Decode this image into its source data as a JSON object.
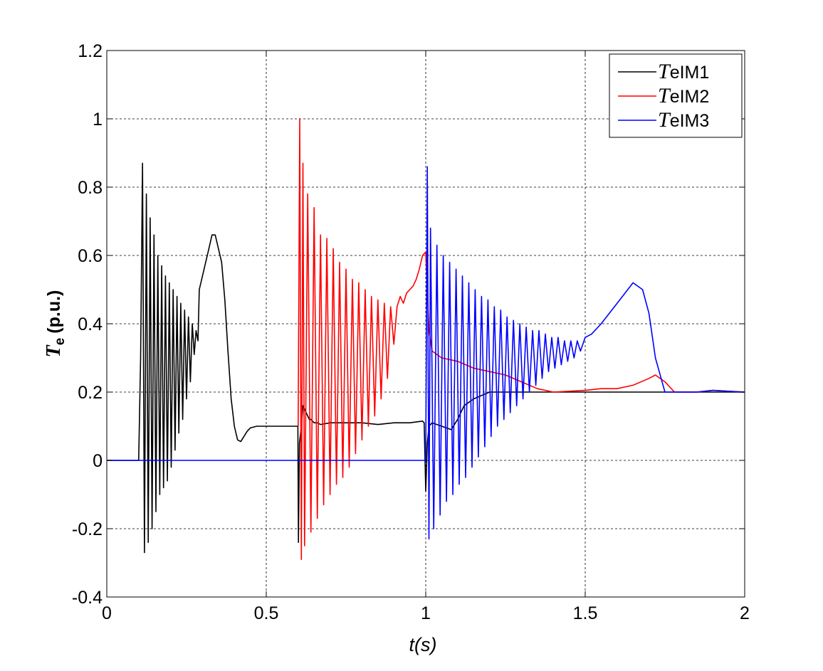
{
  "chart_data": {
    "type": "line",
    "title": "",
    "xlabel": "t(s)",
    "ylabel": {
      "symbol": "T",
      "subscript": "e",
      "unit": "(p.u.)"
    },
    "xlim": [
      0,
      2
    ],
    "ylim": [
      -0.4,
      1.2
    ],
    "xticks": [
      0,
      0.5,
      1,
      1.5,
      2
    ],
    "xtick_labels": [
      "0",
      "0.5",
      "1",
      "1.5",
      "2"
    ],
    "yticks": [
      -0.4,
      -0.2,
      0,
      0.2,
      0.4,
      0.6,
      0.8,
      1,
      1.2
    ],
    "ytick_labels": [
      "-0.4",
      "-0.2",
      "0",
      "0.2",
      "0.4",
      "0.6",
      "0.8",
      "1",
      "1.2"
    ],
    "grid": true,
    "legend_position": "top-right",
    "series": [
      {
        "name": "TeIM1",
        "legend_symbol": "T",
        "legend_rest": "eIM1",
        "color": "#000000",
        "x": [
          0,
          0.1,
          0.106,
          0.112,
          0.118,
          0.124,
          0.13,
          0.136,
          0.142,
          0.148,
          0.154,
          0.16,
          0.166,
          0.172,
          0.178,
          0.184,
          0.19,
          0.196,
          0.202,
          0.208,
          0.214,
          0.22,
          0.226,
          0.232,
          0.238,
          0.244,
          0.25,
          0.256,
          0.262,
          0.268,
          0.274,
          0.28,
          0.286,
          0.29,
          0.3,
          0.31,
          0.32,
          0.33,
          0.34,
          0.35,
          0.36,
          0.37,
          0.38,
          0.39,
          0.4,
          0.41,
          0.42,
          0.43,
          0.44,
          0.45,
          0.47,
          0.5,
          0.55,
          0.599,
          0.601,
          0.604,
          0.61,
          0.615,
          0.62,
          0.625,
          0.63,
          0.635,
          0.64,
          0.65,
          0.66,
          0.67,
          0.7,
          0.75,
          0.8,
          0.85,
          0.9,
          0.95,
          0.99,
          0.995,
          1,
          1.005,
          1.01,
          1.02,
          1.05,
          1.08,
          1.1,
          1.12,
          1.15,
          1.2,
          1.25,
          1.3,
          1.35,
          1.4,
          1.5,
          1.6,
          1.7,
          1.75,
          1.8,
          1.85,
          1.9,
          2
        ],
        "y": [
          0,
          0,
          0.3,
          0.87,
          -0.27,
          0.78,
          -0.24,
          0.71,
          -0.2,
          0.66,
          -0.15,
          0.6,
          -0.1,
          0.57,
          -0.08,
          0.54,
          -0.06,
          0.52,
          -0.02,
          0.5,
          0.03,
          0.48,
          0.08,
          0.46,
          0.12,
          0.44,
          0.18,
          0.42,
          0.23,
          0.4,
          0.31,
          0.38,
          0.35,
          0.5,
          0.54,
          0.58,
          0.62,
          0.66,
          0.66,
          0.62,
          0.58,
          0.47,
          0.32,
          0.18,
          0.1,
          0.06,
          0.055,
          0.07,
          0.085,
          0.095,
          0.1,
          0.1,
          0.1,
          0.1,
          -0.24,
          0.05,
          0.1,
          0.16,
          0.15,
          0.14,
          0.13,
          0.12,
          0.12,
          0.11,
          0.11,
          0.105,
          0.11,
          0.11,
          0.11,
          0.105,
          0.11,
          0.11,
          0.115,
          0.11,
          -0.09,
          0.05,
          0.1,
          0.11,
          0.1,
          0.09,
          0.12,
          0.16,
          0.18,
          0.2,
          0.2,
          0.2,
          0.2,
          0.2,
          0.2,
          0.2,
          0.2,
          0.2,
          0.2,
          0.2,
          0.2,
          0.2
        ]
      },
      {
        "name": "TeIM2",
        "legend_symbol": "T",
        "legend_rest": "eIM2",
        "color": "#ff0000",
        "x": [
          0.6,
          0.605,
          0.61,
          0.615,
          0.62,
          0.63,
          0.64,
          0.65,
          0.66,
          0.67,
          0.68,
          0.69,
          0.7,
          0.71,
          0.72,
          0.73,
          0.74,
          0.75,
          0.76,
          0.77,
          0.78,
          0.79,
          0.8,
          0.81,
          0.82,
          0.83,
          0.84,
          0.85,
          0.86,
          0.87,
          0.88,
          0.89,
          0.9,
          0.91,
          0.92,
          0.93,
          0.94,
          0.95,
          0.96,
          0.97,
          0.98,
          0.99,
          1,
          1.005,
          1.01,
          1.02,
          1.05,
          1.1,
          1.15,
          1.2,
          1.25,
          1.3,
          1.35,
          1.4,
          1.5,
          1.55,
          1.6,
          1.65,
          1.7,
          1.72,
          1.75,
          1.78,
          1.8,
          1.85,
          1.9,
          2
        ],
        "y": [
          0.1,
          1.0,
          -0.29,
          0.87,
          -0.25,
          0.78,
          -0.21,
          0.74,
          -0.17,
          0.66,
          -0.13,
          0.65,
          -0.1,
          0.62,
          -0.07,
          0.58,
          -0.05,
          0.56,
          -0.02,
          0.53,
          0.02,
          0.52,
          0.06,
          0.5,
          0.1,
          0.48,
          0.13,
          0.47,
          0.18,
          0.46,
          0.24,
          0.45,
          0.34,
          0.45,
          0.48,
          0.46,
          0.49,
          0.5,
          0.51,
          0.53,
          0.56,
          0.6,
          0.61,
          0.5,
          0.38,
          0.32,
          0.3,
          0.29,
          0.27,
          0.26,
          0.25,
          0.23,
          0.21,
          0.2,
          0.205,
          0.21,
          0.21,
          0.22,
          0.24,
          0.25,
          0.23,
          0.2,
          0.2,
          0.2,
          0.205,
          0.2
        ]
      },
      {
        "name": "TeIM3",
        "legend_symbol": "T",
        "legend_rest": "eIM3",
        "color": "#0000ff",
        "x": [
          0,
          1,
          1.005,
          1.01,
          1.015,
          1.025,
          1.035,
          1.045,
          1.055,
          1.065,
          1.075,
          1.085,
          1.095,
          1.105,
          1.115,
          1.125,
          1.135,
          1.145,
          1.155,
          1.165,
          1.175,
          1.185,
          1.195,
          1.205,
          1.215,
          1.225,
          1.235,
          1.245,
          1.255,
          1.265,
          1.275,
          1.285,
          1.295,
          1.305,
          1.315,
          1.325,
          1.335,
          1.345,
          1.355,
          1.365,
          1.375,
          1.385,
          1.395,
          1.405,
          1.415,
          1.425,
          1.435,
          1.445,
          1.455,
          1.465,
          1.475,
          1.485,
          1.5,
          1.52,
          1.55,
          1.6,
          1.65,
          1.68,
          1.7,
          1.72,
          1.75,
          1.78,
          1.8,
          1.85,
          1.9,
          2
        ],
        "y": [
          0,
          0,
          0.86,
          -0.23,
          0.68,
          -0.2,
          0.63,
          -0.16,
          0.6,
          -0.12,
          0.58,
          -0.1,
          0.56,
          -0.07,
          0.54,
          -0.05,
          0.52,
          -0.02,
          0.5,
          0.01,
          0.48,
          0.04,
          0.47,
          0.07,
          0.45,
          0.1,
          0.44,
          0.12,
          0.42,
          0.14,
          0.41,
          0.16,
          0.4,
          0.18,
          0.39,
          0.2,
          0.38,
          0.22,
          0.38,
          0.24,
          0.37,
          0.26,
          0.36,
          0.27,
          0.36,
          0.28,
          0.35,
          0.29,
          0.35,
          0.3,
          0.35,
          0.32,
          0.36,
          0.37,
          0.4,
          0.46,
          0.52,
          0.5,
          0.43,
          0.3,
          0.2,
          0.2,
          0.2,
          0.2,
          0.205,
          0.2
        ]
      }
    ]
  }
}
